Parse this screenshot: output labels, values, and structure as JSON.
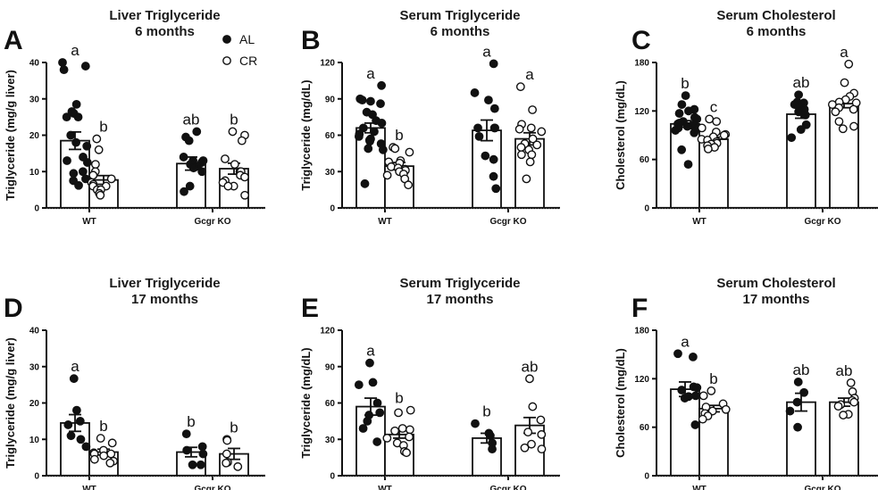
{
  "legend": {
    "items": [
      {
        "label": "AL",
        "marker": "filled-circle"
      },
      {
        "label": "CR",
        "marker": "open-circle"
      }
    ],
    "placement": "top-right of panel A"
  },
  "chart_data": [
    {
      "type": "bar",
      "panel": "A",
      "title": [
        "Liver Triglyceride",
        "6 months"
      ],
      "ylabel": "Triglyceride (mg/g liver)",
      "ylim": [
        0,
        40
      ],
      "yticks": [
        0,
        10,
        20,
        30,
        40
      ],
      "categories": [
        "WT",
        "Gcgr KO"
      ],
      "series": [
        {
          "name": "AL",
          "values": [
            18.5,
            12.2
          ],
          "sem": [
            2.4,
            1.8
          ],
          "letters": [
            "a",
            "ab"
          ],
          "points": [
            [
              40,
              39,
              38,
              28.5,
              26.5,
              26,
              25,
              25,
              20,
              18,
              17,
              14,
              13,
              12.5,
              10,
              9.5,
              8,
              7.5,
              6.2
            ],
            [
              21,
              19.5,
              18.5,
              14,
              13,
              13,
              12.5,
              12,
              11.5,
              11,
              10,
              6,
              4.5
            ]
          ]
        },
        {
          "name": "CR",
          "values": [
            7.7,
            10.8
          ],
          "sem": [
            1.2,
            1.5
          ],
          "letters": [
            "b",
            "b"
          ],
          "points": [
            [
              19,
              16,
              12,
              10,
              9,
              8,
              7,
              6.5,
              6,
              6,
              5,
              5,
              4,
              3.5
            ],
            [
              21,
              20,
              18.5,
              13.5,
              12,
              10,
              10,
              9,
              8.5,
              7.5,
              7,
              6,
              6,
              3.5
            ]
          ]
        }
      ]
    },
    {
      "type": "bar",
      "panel": "B",
      "title": [
        "Serum Triglyceride",
        "6 months"
      ],
      "ylabel": "Triglyceride (mg/dL)",
      "ylim": [
        0,
        120
      ],
      "yticks": [
        0,
        30,
        60,
        90,
        120
      ],
      "categories": [
        "WT",
        "Gcgr KO"
      ],
      "series": [
        {
          "name": "AL",
          "values": [
            66,
            64
          ],
          "sem": [
            4,
            8.5
          ],
          "letters": [
            "a",
            "a"
          ],
          "points": [
            [
              101,
              90,
              89,
              88,
              86,
              79,
              77,
              72,
              70,
              66,
              63,
              61,
              59,
              57,
              56,
              55,
              53,
              49,
              48,
              20
            ],
            [
              119,
              95,
              89,
              82,
              66,
              66,
              66,
              59,
              43,
              40,
              26,
              16
            ]
          ]
        },
        {
          "name": "CR",
          "values": [
            34.5,
            57
          ],
          "sem": [
            3,
            5
          ],
          "letters": [
            "b",
            "a"
          ],
          "points": [
            [
              50,
              49,
              46,
              39,
              38,
              37,
              34,
              33,
              32,
              31,
              30,
              28,
              27,
              24,
              19
            ],
            [
              100,
              81,
              69,
              66,
              65,
              63,
              57,
              53,
              52,
              50,
              48,
              44,
              44,
              38,
              24
            ]
          ]
        }
      ]
    },
    {
      "type": "bar",
      "panel": "C",
      "title": [
        "Serum Cholesterol",
        "6 months"
      ],
      "ylabel": "Cholesterol (mg/dL)",
      "ylim": [
        0,
        180
      ],
      "yticks": [
        0,
        60,
        120,
        180
      ],
      "categories": [
        "WT",
        "Gcgr KO"
      ],
      "series": [
        {
          "name": "AL",
          "values": [
            104,
            116
          ],
          "sem": [
            4,
            5
          ],
          "letters": [
            "b",
            "ab"
          ],
          "points": [
            [
              139,
              128,
              122,
              120,
              117,
              112,
              110,
              107,
              105,
              104,
              103,
              102,
              101,
              99,
              98,
              96,
              93,
              72,
              54
            ],
            [
              140,
              131,
              130,
              128,
              125,
              122,
              119,
              115,
              103,
              97,
              87
            ]
          ]
        },
        {
          "name": "CR",
          "values": [
            85,
            129
          ],
          "sem": [
            2.5,
            5
          ],
          "letters": [
            "c",
            "a"
          ],
          "points": [
            [
              110,
              107,
              99,
              94,
              91,
              90,
              88,
              85,
              84,
              82,
              80,
              79,
              77,
              75,
              73
            ],
            [
              178,
              155,
              142,
              138,
              134,
              131,
              130,
              128,
              124,
              122,
              119,
              107,
              101,
              98
            ]
          ]
        }
      ]
    },
    {
      "type": "bar",
      "panel": "D",
      "title": [
        "Liver Triglyceride",
        "17 months"
      ],
      "ylabel": "Triglyceride (mg/g liver)",
      "ylim": [
        0,
        40
      ],
      "yticks": [
        0,
        10,
        20,
        30,
        40
      ],
      "categories": [
        "WT",
        "Gcgr KO"
      ],
      "series": [
        {
          "name": "AL",
          "values": [
            14.5,
            6.5
          ],
          "sem": [
            2.3,
            1.3
          ],
          "letters": [
            "a",
            "b"
          ],
          "points": [
            [
              26.7,
              18,
              15,
              14,
              11,
              10,
              8
            ],
            [
              11.5,
              8,
              7,
              6,
              3,
              3
            ]
          ]
        },
        {
          "name": "CR",
          "values": [
            6.5,
            6
          ],
          "sem": [
            0.8,
            1.5
          ],
          "letters": [
            "b",
            "b"
          ],
          "points": [
            [
              10.3,
              9,
              7,
              6.3,
              6,
              6,
              5.5,
              4.5,
              4,
              3.5
            ],
            [
              10,
              9.7,
              6,
              3.7,
              3.5,
              2.5
            ]
          ]
        }
      ]
    },
    {
      "type": "bar",
      "panel": "E",
      "title": [
        "Serum Triglyceride",
        "17 months"
      ],
      "ylabel": "Triglyceride (mg/dL)",
      "ylim": [
        0,
        120
      ],
      "yticks": [
        0,
        30,
        60,
        90,
        120
      ],
      "categories": [
        "WT",
        "Gcgr KO"
      ],
      "series": [
        {
          "name": "AL",
          "values": [
            57,
            31
          ],
          "sem": [
            7,
            4
          ],
          "letters": [
            "a",
            "b"
          ],
          "points": [
            [
              93,
              77,
              75,
              60,
              52,
              50,
              45,
              39,
              28
            ],
            [
              43,
              35,
              33,
              27,
              22
            ]
          ]
        },
        {
          "name": "CR",
          "values": [
            34,
            41.5
          ],
          "sem": [
            3,
            6.5
          ],
          "letters": [
            "b",
            "ab"
          ],
          "points": [
            [
              54,
              52,
              39,
              38,
              37,
              32,
              31,
              27,
              25,
              20,
              19
            ],
            [
              80,
              57,
              46,
              36,
              34,
              26,
              23,
              22
            ]
          ]
        }
      ]
    },
    {
      "type": "bar",
      "panel": "F",
      "title": [
        "Serum Cholesterol",
        "17 months"
      ],
      "ylabel": "Cholesterol (mg/dL)",
      "ylim": [
        0,
        180
      ],
      "yticks": [
        0,
        60,
        120,
        180
      ],
      "categories": [
        "WT",
        "Gcgr KO"
      ],
      "series": [
        {
          "name": "AL",
          "values": [
            107,
            91
          ],
          "sem": [
            9,
            11
          ],
          "letters": [
            "a",
            "ab"
          ],
          "points": [
            [
              151,
              147,
              110,
              109,
              106,
              99,
              98,
              96,
              63
            ],
            [
              116,
              103,
              91,
              80,
              60
            ]
          ]
        },
        {
          "name": "CR",
          "values": [
            83,
            91
          ],
          "sem": [
            4,
            5
          ],
          "letters": [
            "b",
            "ab"
          ],
          "points": [
            [
              105,
              99,
              89,
              85,
              82,
              80,
              77,
              74,
              70
            ],
            [
              115,
              104,
              96,
              93,
              91,
              88,
              86,
              76,
              75
            ]
          ]
        }
      ]
    }
  ]
}
